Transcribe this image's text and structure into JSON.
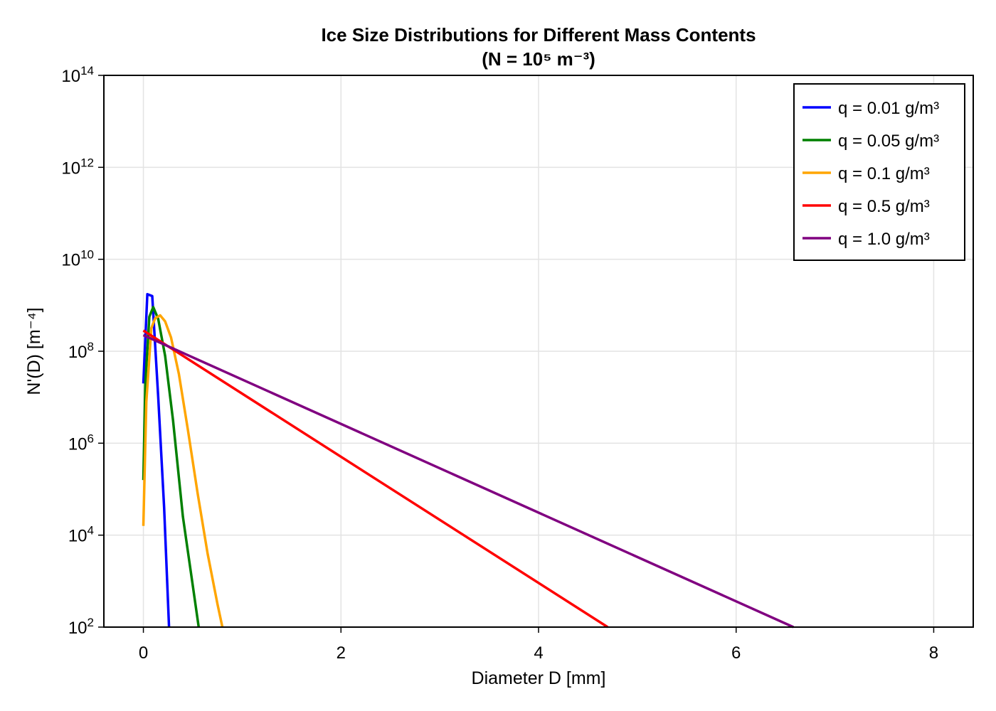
{
  "chart_data": {
    "type": "line",
    "title_line1": "Ice Size Distributions for Different Mass Contents",
    "title_line2": "(N = 10⁵ m⁻³)",
    "xlabel": "Diameter D [mm]",
    "ylabel": "N'(D) [m⁻⁴]",
    "xlim": [
      -0.4,
      8.4
    ],
    "ylim_log10": [
      2,
      14
    ],
    "yscale": "log10",
    "grid": true,
    "legend_position": "top-right",
    "x_ticks": [
      0,
      2,
      4,
      6,
      8
    ],
    "y_tick_exponents": [
      2,
      4,
      6,
      8,
      10,
      12,
      14
    ],
    "y_tick_base": "10",
    "series": [
      {
        "name": "q = 0.01 g/m³",
        "color": "#0000ff",
        "x": [
          0.0,
          0.04,
          0.09,
          0.15,
          0.21,
          0.26
        ],
        "y_log10": [
          7.3,
          9.24,
          9.2,
          7.0,
          4.6,
          2.0
        ]
      },
      {
        "name": "q = 0.05 g/m³",
        "color": "#008000",
        "x": [
          0.0,
          0.02,
          0.06,
          0.1,
          0.15,
          0.22,
          0.3,
          0.4,
          0.5,
          0.56
        ],
        "y_log10": [
          5.2,
          7.3,
          8.75,
          8.96,
          8.7,
          7.9,
          6.5,
          4.4,
          2.9,
          2.0
        ]
      },
      {
        "name": "q = 0.1 g/m³",
        "color": "#ffa500",
        "x": [
          0.0,
          0.03,
          0.08,
          0.12,
          0.17,
          0.22,
          0.28,
          0.36,
          0.45,
          0.55,
          0.65,
          0.75,
          0.8
        ],
        "y_log10": [
          4.2,
          6.9,
          8.5,
          8.72,
          8.78,
          8.65,
          8.3,
          7.5,
          6.3,
          4.9,
          3.6,
          2.5,
          2.0
        ]
      },
      {
        "name": "q = 0.5 g/m³",
        "color": "#ff0000",
        "x": [
          0.0,
          4.7
        ],
        "y_log10": [
          8.45,
          2.0
        ]
      },
      {
        "name": "q = 1.0 g/m³",
        "color": "#800080",
        "x": [
          0.0,
          6.58
        ],
        "y_log10": [
          8.35,
          2.0
        ]
      }
    ]
  }
}
